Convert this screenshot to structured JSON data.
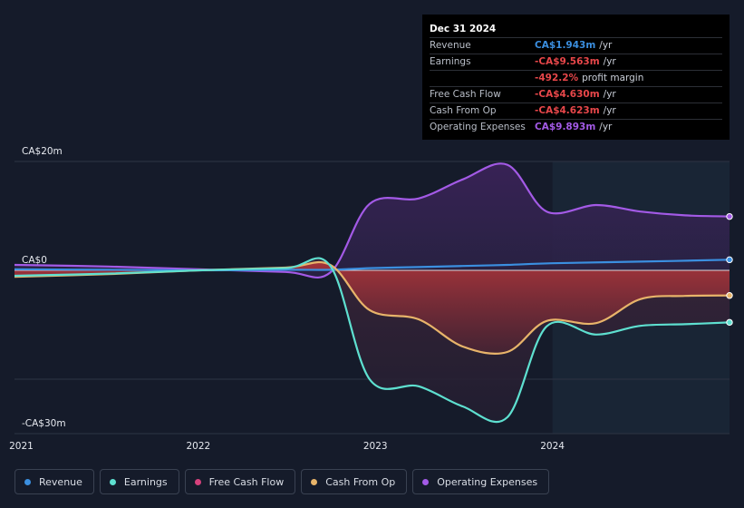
{
  "tooltip": {
    "date": "Dec 31 2024",
    "rows": [
      {
        "label": "Revenue",
        "value": "CA$1.943m",
        "unit": "/yr",
        "color": "#3b8fe0"
      },
      {
        "label": "Earnings",
        "value": "-CA$9.563m",
        "unit": "/yr",
        "color": "#e8474a"
      },
      {
        "label": "",
        "value": "-492.2%",
        "unit": "profit margin",
        "color": "#e8474a"
      },
      {
        "label": "Free Cash Flow",
        "value": "-CA$4.630m",
        "unit": "/yr",
        "color": "#e8474a"
      },
      {
        "label": "Cash From Op",
        "value": "-CA$4.623m",
        "unit": "/yr",
        "color": "#e8474a"
      },
      {
        "label": "Operating Expenses",
        "value": "CA$9.893m",
        "unit": "/yr",
        "color": "#a35ae6"
      }
    ]
  },
  "legend": [
    {
      "label": "Revenue",
      "color": "#3b8fe0"
    },
    {
      "label": "Earnings",
      "color": "#5ee0d0"
    },
    {
      "label": "Free Cash Flow",
      "color": "#d6417c"
    },
    {
      "label": "Cash From Op",
      "color": "#e8b46a"
    },
    {
      "label": "Operating Expenses",
      "color": "#a35ae6"
    }
  ],
  "chart_data": {
    "type": "area",
    "y_unit": "CA$m",
    "ylim": [
      -30,
      20
    ],
    "xlim": [
      "2020-12-18",
      "2024-12-31"
    ],
    "y_tick_labels": [
      {
        "value": 20,
        "label": "CA$20m"
      },
      {
        "value": 0,
        "label": "CA$0"
      },
      {
        "value": -30,
        "label": "-CA$30m"
      }
    ],
    "x_tick_labels": [
      {
        "date": "2021-01-01",
        "label": "2021"
      },
      {
        "date": "2022-01-01",
        "label": "2022"
      },
      {
        "date": "2023-01-01",
        "label": "2023"
      },
      {
        "date": "2024-01-01",
        "label": "2024"
      }
    ],
    "gridlines_y": [
      20,
      -20
    ],
    "past_data_boundary": "2024-01-01",
    "series": [
      {
        "name": "Operating Expenses",
        "color": "#a35ae6",
        "points": [
          [
            "2020-12-18",
            1.0
          ],
          [
            "2021-06-30",
            0.7
          ],
          [
            "2022-01-01",
            0.2
          ],
          [
            "2022-06-30",
            -0.3
          ],
          [
            "2022-09-30",
            -0.4
          ],
          [
            "2022-12-20",
            12.2
          ],
          [
            "2023-03-31",
            13.2
          ],
          [
            "2023-06-30",
            16.7
          ],
          [
            "2023-09-30",
            19.4
          ],
          [
            "2023-12-20",
            10.8
          ],
          [
            "2024-03-31",
            12.0
          ],
          [
            "2024-06-30",
            10.8
          ],
          [
            "2024-09-30",
            10.1
          ],
          [
            "2024-12-31",
            9.893
          ]
        ]
      },
      {
        "name": "Revenue",
        "color": "#3b8fe0",
        "points": [
          [
            "2020-12-18",
            0.2
          ],
          [
            "2021-06-30",
            0.1
          ],
          [
            "2022-01-01",
            0.0
          ],
          [
            "2022-06-30",
            0.1
          ],
          [
            "2022-09-30",
            0.1
          ],
          [
            "2022-12-20",
            0.4
          ],
          [
            "2023-03-31",
            0.6
          ],
          [
            "2023-06-30",
            0.8
          ],
          [
            "2023-09-30",
            1.0
          ],
          [
            "2023-12-31",
            1.3
          ],
          [
            "2024-06-30",
            1.6
          ],
          [
            "2024-12-31",
            1.943
          ]
        ]
      },
      {
        "name": "Cash From Op",
        "color": "#e8b46a",
        "points": [
          [
            "2020-12-18",
            -1.2
          ],
          [
            "2021-06-30",
            -0.7
          ],
          [
            "2022-01-01",
            0.0
          ],
          [
            "2022-06-30",
            0.5
          ],
          [
            "2022-09-30",
            1.0
          ],
          [
            "2022-12-20",
            -7.3
          ],
          [
            "2023-03-31",
            -9.0
          ],
          [
            "2023-06-30",
            -14.0
          ],
          [
            "2023-09-30",
            -15.0
          ],
          [
            "2023-12-20",
            -9.3
          ],
          [
            "2024-03-31",
            -9.7
          ],
          [
            "2024-06-30",
            -5.3
          ],
          [
            "2024-09-30",
            -4.7
          ],
          [
            "2024-12-31",
            -4.623
          ]
        ]
      },
      {
        "name": "Earnings",
        "color": "#5ee0d0",
        "points": [
          [
            "2020-12-18",
            -1.0
          ],
          [
            "2021-06-30",
            -0.6
          ],
          [
            "2022-01-01",
            0.0
          ],
          [
            "2022-06-30",
            0.4
          ],
          [
            "2022-09-30",
            0.8
          ],
          [
            "2022-12-20",
            -20.0
          ],
          [
            "2023-03-31",
            -21.3
          ],
          [
            "2023-06-30",
            -25.0
          ],
          [
            "2023-09-30",
            -27.0
          ],
          [
            "2023-12-20",
            -10.3
          ],
          [
            "2024-03-31",
            -11.8
          ],
          [
            "2024-06-30",
            -10.2
          ],
          [
            "2024-09-30",
            -9.9
          ],
          [
            "2024-12-31",
            -9.563
          ]
        ]
      }
    ]
  }
}
